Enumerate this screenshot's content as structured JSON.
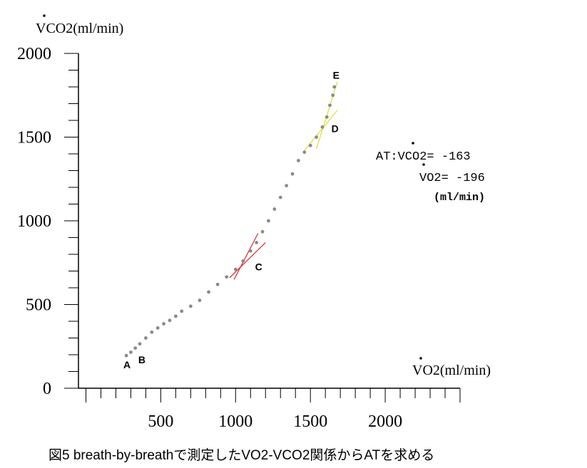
{
  "chart_data": {
    "type": "scatter",
    "ylabel": "VCO2(ml/min)",
    "xlabel": "VO2(ml/min)",
    "xlim": [
      -50,
      2500
    ],
    "ylim": [
      0,
      2000
    ],
    "x_ticks": [
      500,
      1000,
      1500,
      2000
    ],
    "y_ticks": [
      0,
      500,
      1000,
      1500,
      2000
    ],
    "x_tick_labels": [
      "500",
      "1000",
      "1500",
      "2000"
    ],
    "y_tick_labels": [
      "0",
      "500",
      "1000",
      "1500",
      "2000"
    ],
    "grid": false,
    "series": [
      {
        "x": [
          270,
          300,
          330,
          360,
          400,
          440,
          480,
          520,
          560,
          600,
          640,
          700,
          760,
          820,
          880,
          940,
          1000,
          1050,
          1100,
          1140,
          1180,
          1220,
          1260,
          1300,
          1340,
          1380,
          1420,
          1460,
          1500,
          1540,
          1580,
          1610,
          1630,
          1650,
          1660
        ],
        "y": [
          195,
          215,
          240,
          265,
          300,
          335,
          360,
          385,
          405,
          430,
          460,
          490,
          525,
          575,
          620,
          665,
          710,
          760,
          820,
          870,
          935,
          1000,
          1070,
          1140,
          1210,
          1280,
          1360,
          1410,
          1450,
          1500,
          1560,
          1620,
          1690,
          1750,
          1800
        ]
      }
    ],
    "point_labels": [
      {
        "label": "A",
        "x": 250,
        "y": 120
      },
      {
        "label": "B",
        "x": 350,
        "y": 150
      },
      {
        "label": "C",
        "x": 1130,
        "y": 705
      },
      {
        "label": "D",
        "x": 1640,
        "y": 1530
      },
      {
        "label": "E",
        "x": 1650,
        "y": 1850
      }
    ],
    "tangent_lines": [
      {
        "name": "C-line-1",
        "color": "#dd3333",
        "x": [
          960,
          1200
        ],
        "y": [
          660,
          870
        ]
      },
      {
        "name": "C-line-2",
        "color": "#dd3333",
        "x": [
          990,
          1150
        ],
        "y": [
          650,
          925
        ]
      },
      {
        "name": "D-line-1",
        "color": "#e0e040",
        "x": [
          1460,
          1680
        ],
        "y": [
          1420,
          1660
        ]
      },
      {
        "name": "D-line-2",
        "color": "#e0e040",
        "x": [
          1540,
          1680
        ],
        "y": [
          1430,
          1830
        ]
      }
    ]
  },
  "annotation": {
    "line1": "AT:VCO2= -163",
    "line2": "VO2= -196",
    "units": "(ml/min)"
  },
  "caption": "図5 breath-by-breathで測定したVO2-VCO2関係からATを求める",
  "colors": {
    "data": "#8a8a8a",
    "axis": "#000000",
    "tangent_c": "#dd3333",
    "tangent_d": "#e0e040"
  }
}
